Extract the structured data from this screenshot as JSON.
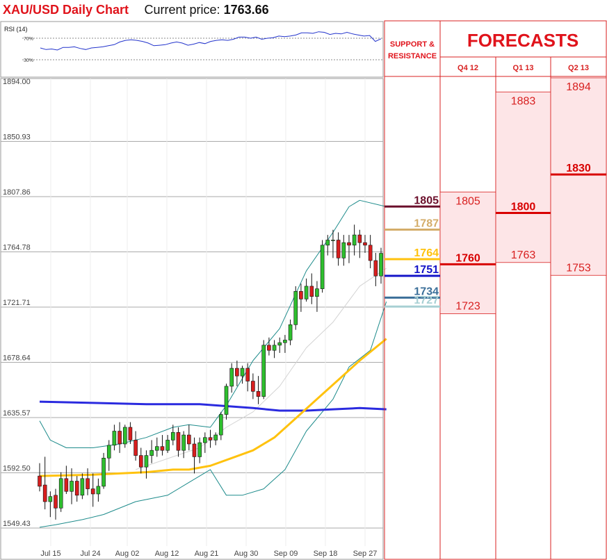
{
  "header": {
    "title": "XAU/USD Daily Chart",
    "price_label": "Current price:",
    "price_value": "1763.66"
  },
  "rsi": {
    "label": "RSI (14)",
    "level_high": "70%",
    "level_low": "30%",
    "values": [
      52,
      49,
      50,
      48,
      53,
      53,
      54,
      51,
      49,
      52,
      53,
      54,
      56,
      58,
      63,
      66,
      67,
      66,
      64,
      61,
      56,
      57,
      58,
      61,
      63,
      61,
      57,
      59,
      62,
      60,
      64,
      66,
      67,
      66,
      68,
      72,
      72,
      70,
      72,
      68,
      70,
      71,
      74,
      73,
      74,
      76,
      80,
      80,
      79,
      82,
      81,
      77,
      79,
      78,
      81,
      78,
      76,
      74,
      75,
      64,
      69
    ],
    "color": "#2233cc"
  },
  "chart_data": {
    "type": "candlestick",
    "y_ticks": [
      "1894.00",
      "1850.93",
      "1807.86",
      "1764.78",
      "1721.71",
      "1678.64",
      "1635.57",
      "1592.50",
      "1549.43"
    ],
    "ylim": [
      1549.43,
      1894.0
    ],
    "x_ticks": [
      "Jul 15",
      "Jul 24",
      "Aug 02",
      "Aug 12",
      "Aug 21",
      "Aug 30",
      "Sep 09",
      "Sep 18",
      "Sep 27"
    ],
    "candles": [
      [
        1590,
        1600,
        1578,
        1582
      ],
      [
        1583,
        1605,
        1564,
        1570
      ],
      [
        1570,
        1578,
        1558,
        1574
      ],
      [
        1575,
        1580,
        1556,
        1565
      ],
      [
        1565,
        1593,
        1562,
        1588
      ],
      [
        1588,
        1598,
        1576,
        1578
      ],
      [
        1578,
        1596,
        1568,
        1586
      ],
      [
        1586,
        1590,
        1570,
        1575
      ],
      [
        1575,
        1592,
        1572,
        1588
      ],
      [
        1588,
        1596,
        1575,
        1580
      ],
      [
        1580,
        1592,
        1566,
        1576
      ],
      [
        1576,
        1588,
        1570,
        1582
      ],
      [
        1582,
        1608,
        1580,
        1604
      ],
      [
        1604,
        1618,
        1594,
        1614
      ],
      [
        1614,
        1630,
        1610,
        1625
      ],
      [
        1625,
        1632,
        1608,
        1615
      ],
      [
        1615,
        1630,
        1612,
        1628
      ],
      [
        1628,
        1632,
        1615,
        1618
      ],
      [
        1618,
        1625,
        1602,
        1606
      ],
      [
        1606,
        1612,
        1592,
        1597
      ],
      [
        1597,
        1610,
        1588,
        1606
      ],
      [
        1606,
        1618,
        1600,
        1610
      ],
      [
        1610,
        1620,
        1605,
        1613
      ],
      [
        1613,
        1622,
        1606,
        1610
      ],
      [
        1610,
        1622,
        1608,
        1618
      ],
      [
        1618,
        1630,
        1614,
        1624
      ],
      [
        1624,
        1628,
        1605,
        1610
      ],
      [
        1610,
        1625,
        1604,
        1622
      ],
      [
        1622,
        1630,
        1610,
        1615
      ],
      [
        1615,
        1620,
        1592,
        1605
      ],
      [
        1605,
        1620,
        1600,
        1616
      ],
      [
        1616,
        1624,
        1608,
        1620
      ],
      [
        1620,
        1626,
        1612,
        1618
      ],
      [
        1618,
        1624,
        1614,
        1622
      ],
      [
        1622,
        1640,
        1618,
        1638
      ],
      [
        1638,
        1662,
        1634,
        1660
      ],
      [
        1660,
        1678,
        1655,
        1674
      ],
      [
        1674,
        1680,
        1660,
        1668
      ],
      [
        1668,
        1676,
        1662,
        1674
      ],
      [
        1674,
        1678,
        1656,
        1664
      ],
      [
        1664,
        1670,
        1650,
        1656
      ],
      [
        1656,
        1668,
        1646,
        1652
      ],
      [
        1652,
        1696,
        1650,
        1692
      ],
      [
        1692,
        1698,
        1684,
        1688
      ],
      [
        1688,
        1696,
        1682,
        1692
      ],
      [
        1692,
        1698,
        1686,
        1694
      ],
      [
        1694,
        1700,
        1686,
        1696
      ],
      [
        1696,
        1712,
        1692,
        1708
      ],
      [
        1708,
        1738,
        1704,
        1734
      ],
      [
        1734,
        1740,
        1718,
        1728
      ],
      [
        1728,
        1744,
        1726,
        1738
      ],
      [
        1738,
        1748,
        1724,
        1730
      ],
      [
        1730,
        1742,
        1718,
        1736
      ],
      [
        1736,
        1774,
        1733,
        1770
      ],
      [
        1770,
        1778,
        1762,
        1774
      ],
      [
        1774,
        1782,
        1760,
        1774
      ],
      [
        1774,
        1780,
        1754,
        1760
      ],
      [
        1760,
        1778,
        1754,
        1772
      ],
      [
        1772,
        1778,
        1756,
        1770
      ],
      [
        1770,
        1786,
        1762,
        1778
      ],
      [
        1778,
        1782,
        1760,
        1772
      ],
      [
        1772,
        1778,
        1764,
        1770
      ],
      [
        1770,
        1778,
        1752,
        1758
      ],
      [
        1758,
        1764,
        1738,
        1746
      ],
      [
        1746,
        1768,
        1740,
        1763.66
      ]
    ],
    "series": [
      {
        "kind": "ma-blue",
        "color": "#2a2adf",
        "points": [
          [
            0,
            1648
          ],
          [
            10,
            1647
          ],
          [
            20,
            1646
          ],
          [
            30,
            1646
          ],
          [
            40,
            1643
          ],
          [
            45,
            1641
          ],
          [
            50,
            1641
          ],
          [
            55,
            1642
          ],
          [
            60,
            1643
          ],
          [
            65,
            1642
          ]
        ]
      },
      {
        "kind": "ma-yellow",
        "color": "#ffc20e",
        "points": [
          [
            0,
            1590
          ],
          [
            10,
            1591
          ],
          [
            15,
            1592
          ],
          [
            20,
            1593
          ],
          [
            25,
            1595
          ],
          [
            28,
            1595
          ],
          [
            32,
            1598
          ],
          [
            36,
            1604
          ],
          [
            40,
            1610
          ],
          [
            44,
            1620
          ],
          [
            48,
            1635
          ],
          [
            52,
            1650
          ],
          [
            56,
            1665
          ],
          [
            60,
            1680
          ],
          [
            65,
            1697
          ]
        ]
      },
      {
        "kind": "bb-upper",
        "color": "#1d8b8b",
        "points": [
          [
            0,
            1633
          ],
          [
            2,
            1618
          ],
          [
            5,
            1612
          ],
          [
            10,
            1612
          ],
          [
            15,
            1615
          ],
          [
            20,
            1620
          ],
          [
            25,
            1628
          ],
          [
            28,
            1630
          ],
          [
            32,
            1628
          ],
          [
            35,
            1645
          ],
          [
            40,
            1680
          ],
          [
            45,
            1705
          ],
          [
            50,
            1750
          ],
          [
            55,
            1780
          ],
          [
            58,
            1800
          ],
          [
            60,
            1805
          ],
          [
            65,
            1800
          ]
        ]
      },
      {
        "kind": "bb-lower",
        "color": "#1d8b8b",
        "points": [
          [
            0,
            1550
          ],
          [
            3,
            1552
          ],
          [
            8,
            1556
          ],
          [
            12,
            1560
          ],
          [
            18,
            1570
          ],
          [
            24,
            1575
          ],
          [
            28,
            1585
          ],
          [
            32,
            1595
          ],
          [
            35,
            1575
          ],
          [
            38,
            1575
          ],
          [
            42,
            1580
          ],
          [
            46,
            1595
          ],
          [
            50,
            1625
          ],
          [
            55,
            1650
          ],
          [
            58,
            1675
          ],
          [
            62,
            1688
          ],
          [
            65,
            1726
          ]
        ]
      },
      {
        "kind": "bb-mid",
        "color": "#d3d3d3",
        "points": [
          [
            18,
            1595
          ],
          [
            25,
            1605
          ],
          [
            30,
            1612
          ],
          [
            35,
            1628
          ],
          [
            40,
            1640
          ],
          [
            45,
            1660
          ],
          [
            50,
            1690
          ],
          [
            55,
            1710
          ],
          [
            60,
            1738
          ],
          [
            65,
            1752
          ]
        ]
      }
    ]
  },
  "forecast_table": {
    "heading": "FORECASTS",
    "sr_heading": "SUPPORT & RESISTANCE",
    "columns": [
      "Q4 12",
      "Q1 13",
      "Q2 13"
    ],
    "levels": [
      {
        "value": "1805",
        "price": 1805,
        "color": "#6b0f2b"
      },
      {
        "value": "1787",
        "price": 1787,
        "color": "#d4ad6a"
      },
      {
        "value": "1764",
        "price": 1764,
        "color": "#ffc20e"
      },
      {
        "value": "1751",
        "price": 1751,
        "color": "#1414c8"
      },
      {
        "value": "1734",
        "price": 1734,
        "color": "#3b6f99"
      },
      {
        "value": "1727",
        "price": 1727,
        "color": "#a8d0d4"
      }
    ],
    "forecasts": [
      {
        "col": 0,
        "top": "1805",
        "top_price": 1805,
        "mid": "1760",
        "mid_price": 1760,
        "bottom": "1723",
        "bottom_price": 1723
      },
      {
        "col": 1,
        "top": "1883",
        "top_price": 1883,
        "mid": "1800",
        "mid_price": 1800,
        "bottom": "1763",
        "bottom_price": 1763
      },
      {
        "col": 2,
        "top": "1894",
        "top_price": 1894,
        "mid": "1830",
        "mid_price": 1830,
        "bottom": "1753",
        "bottom_price": 1753
      }
    ]
  }
}
